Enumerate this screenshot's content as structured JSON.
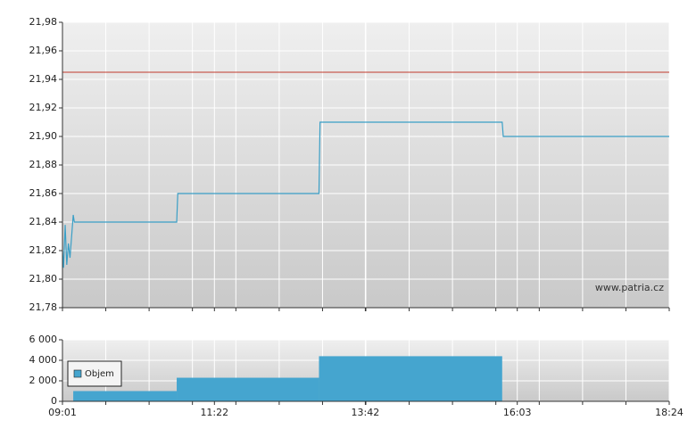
{
  "chart_data": [
    {
      "type": "line",
      "xlim": [
        541,
        1104
      ],
      "xticks": [
        {
          "value": 541,
          "label": "09:01"
        },
        {
          "value": 682,
          "label": "11:22"
        },
        {
          "value": 822,
          "label": "13:42"
        },
        {
          "value": 963,
          "label": "16:03"
        },
        {
          "value": 1104,
          "label": "18:24"
        }
      ],
      "xminor": [
        581.2,
        621.4,
        661.6,
        701.9,
        742.1,
        782.3,
        822.5,
        862.7,
        902.9,
        943.1,
        983.4,
        1023.6,
        1063.8
      ],
      "ylim": [
        21.78,
        21.98
      ],
      "yticks": [
        {
          "value": 21.78,
          "label": "21,78"
        },
        {
          "value": 21.8,
          "label": "21,80"
        },
        {
          "value": 21.82,
          "label": "21,82"
        },
        {
          "value": 21.84,
          "label": "21,84"
        },
        {
          "value": 21.86,
          "label": "21,86"
        },
        {
          "value": 21.88,
          "label": "21,88"
        },
        {
          "value": 21.9,
          "label": "21,90"
        },
        {
          "value": 21.92,
          "label": "21,92"
        },
        {
          "value": 21.94,
          "label": "21,94"
        },
        {
          "value": 21.96,
          "label": "21,96"
        },
        {
          "value": 21.98,
          "label": "21,98"
        }
      ],
      "grid": true,
      "x": [
        541,
        542,
        543.5,
        545,
        546.5,
        548,
        550,
        551,
        552,
        647,
        648,
        779,
        780,
        949,
        950,
        1104
      ],
      "values": [
        21.82,
        21.808,
        21.838,
        21.81,
        21.825,
        21.815,
        21.835,
        21.845,
        21.84,
        21.84,
        21.86,
        21.86,
        21.91,
        21.91,
        21.9,
        21.9
      ],
      "color": "#3a9fc6",
      "reference_line": {
        "value": 21.945,
        "color": "#c0392b"
      },
      "annotation": "www.patria.cz"
    },
    {
      "type": "histogram",
      "xlim": [
        541,
        1104
      ],
      "xticks": [
        {
          "value": 541,
          "label": "09:01"
        },
        {
          "value": 682,
          "label": "11:22"
        },
        {
          "value": 822,
          "label": "13:42"
        },
        {
          "value": 963,
          "label": "16:03"
        },
        {
          "value": 1104,
          "label": "18:24"
        }
      ],
      "xminor": [
        581.2,
        621.4,
        661.6,
        701.9,
        742.1,
        782.3,
        822.5,
        862.7,
        902.9,
        943.1,
        983.4,
        1023.6,
        1063.8
      ],
      "ylim": [
        0,
        6000
      ],
      "yticks": [
        0,
        {
          "value": 2000,
          "label": "2 000"
        },
        {
          "value": 4000,
          "label": "4 000"
        },
        {
          "value": 6000,
          "label": "6 000"
        }
      ],
      "grid": true,
      "series": [
        {
          "name": "Objem",
          "color": "#45a5cf",
          "bins": [
            551,
            647,
            779,
            949
          ],
          "values": [
            1000,
            2300,
            4400
          ]
        }
      ],
      "legend": "upper-left"
    }
  ]
}
